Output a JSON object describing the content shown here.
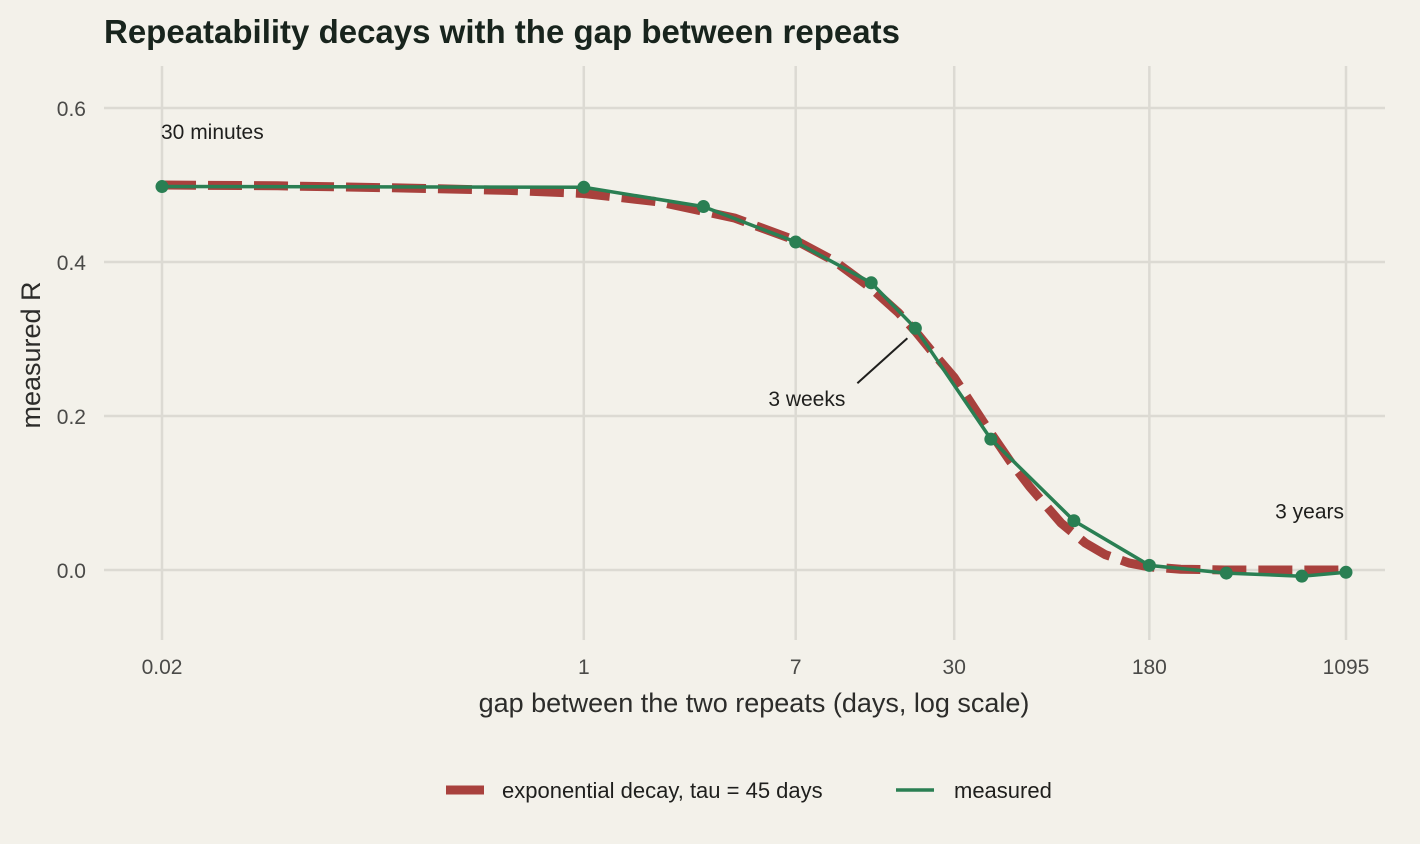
{
  "chart_data": {
    "type": "line",
    "title": "Repeatability decays with the gap between repeats",
    "xlabel": "gap between the two repeats (days, log scale)",
    "ylabel": "measured R",
    "x_scale": "log",
    "xlim": [
      0.0208,
      1095
    ],
    "ylim": [
      -0.09,
      0.63
    ],
    "x_ticks": [
      0.0208,
      1,
      7,
      30,
      180,
      1095
    ],
    "x_tick_labels": [
      "0.02",
      "1",
      "7",
      "30",
      "180",
      "1095"
    ],
    "y_ticks": [
      0.0,
      0.2,
      0.4,
      0.6
    ],
    "y_tick_labels": [
      "0.0",
      "0.2",
      "0.4",
      "0.6"
    ],
    "grid": true,
    "legend_position": "bottom",
    "series": [
      {
        "name": "exponential decay, tau = 45 days",
        "style": "dashed",
        "color": "#a8413d",
        "x": [
          0.0208,
          0.06,
          0.2,
          0.5,
          1,
          2,
          4,
          7,
          10,
          14,
          18,
          21,
          25,
          30,
          40,
          50,
          60,
          80,
          100,
          120,
          150,
          180,
          240,
          360,
          540,
          720,
          1095
        ],
        "y": [
          0.5,
          0.499,
          0.496,
          0.493,
          0.489,
          0.478,
          0.457,
          0.428,
          0.401,
          0.366,
          0.334,
          0.31,
          0.28,
          0.25,
          0.188,
          0.142,
          0.108,
          0.061,
          0.035,
          0.02,
          0.009,
          0.004,
          0.001,
          0.0,
          0.0,
          0.0,
          0.0
        ]
      },
      {
        "name": "measured",
        "style": "solid",
        "color": "#2a7f53",
        "x": [
          0.0208,
          1,
          3,
          7,
          14,
          21,
          42,
          90,
          180,
          365,
          730,
          1095
        ],
        "y": [
          0.498,
          0.497,
          0.472,
          0.426,
          0.373,
          0.314,
          0.17,
          0.064,
          0.006,
          -0.004,
          -0.008,
          -0.003
        ]
      }
    ],
    "annotations": [
      {
        "text": "30 minutes",
        "x": 0.0208,
        "y": 0.5
      },
      {
        "text": "3 weeks",
        "x": 21,
        "y": 0.314
      },
      {
        "text": "3 years",
        "x": 1095,
        "y": -0.003
      }
    ]
  }
}
